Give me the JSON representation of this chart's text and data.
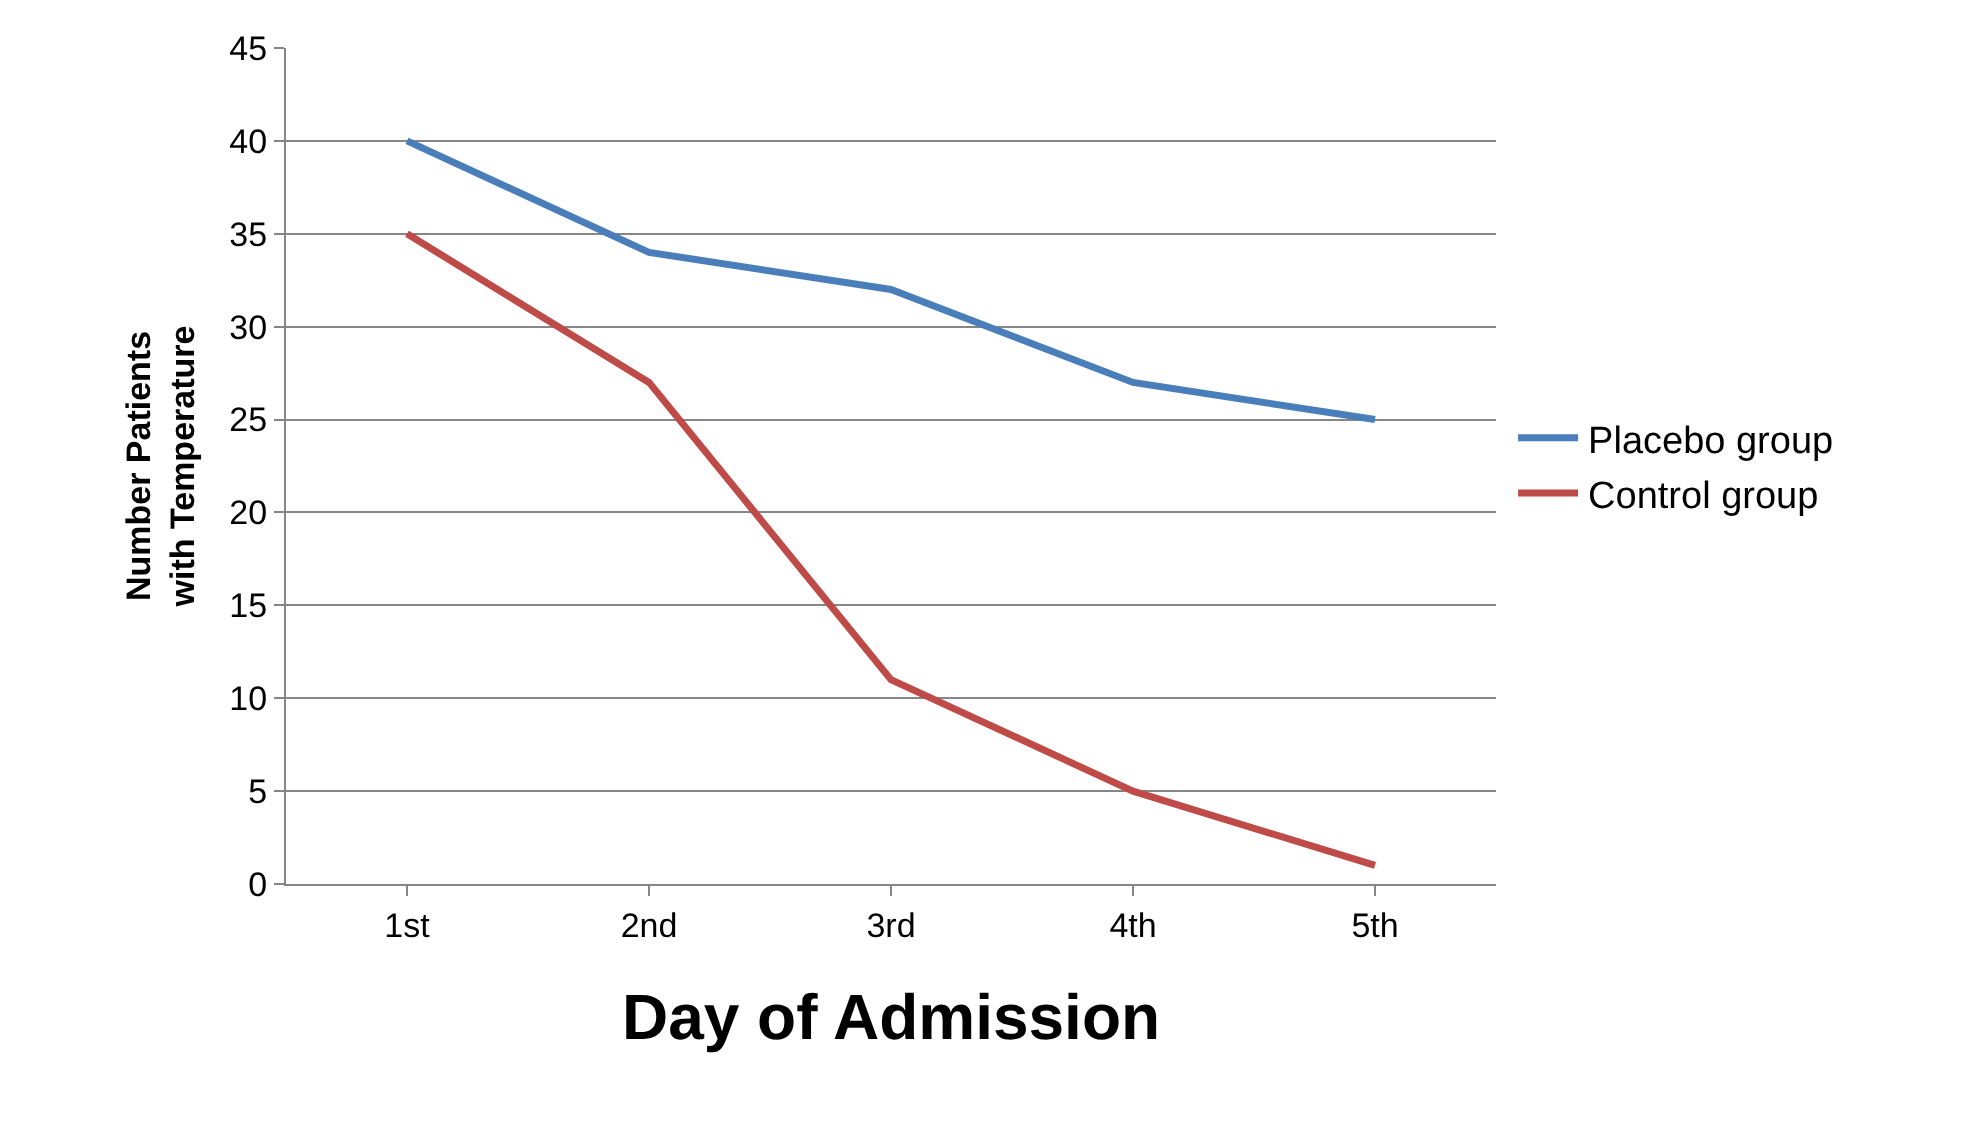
{
  "chart_data": {
    "type": "line",
    "xlabel": "Day of Admission",
    "ylabel": "Number Patients\nwith Temperature",
    "categories": [
      "1st",
      "2nd",
      "3rd",
      "4th",
      "5th"
    ],
    "series": [
      {
        "name": "Placebo group",
        "color": "#4a7ebb",
        "values": [
          40,
          34,
          32,
          27,
          25
        ]
      },
      {
        "name": "Control group",
        "color": "#be4b48",
        "values": [
          35,
          27,
          11,
          5,
          1
        ]
      }
    ],
    "ylim": [
      0,
      45
    ],
    "yticks": [
      0,
      5,
      10,
      15,
      20,
      25,
      30,
      35,
      40,
      45
    ],
    "grid": "y",
    "legend": "right",
    "marker": "none",
    "line_style": "solid"
  }
}
